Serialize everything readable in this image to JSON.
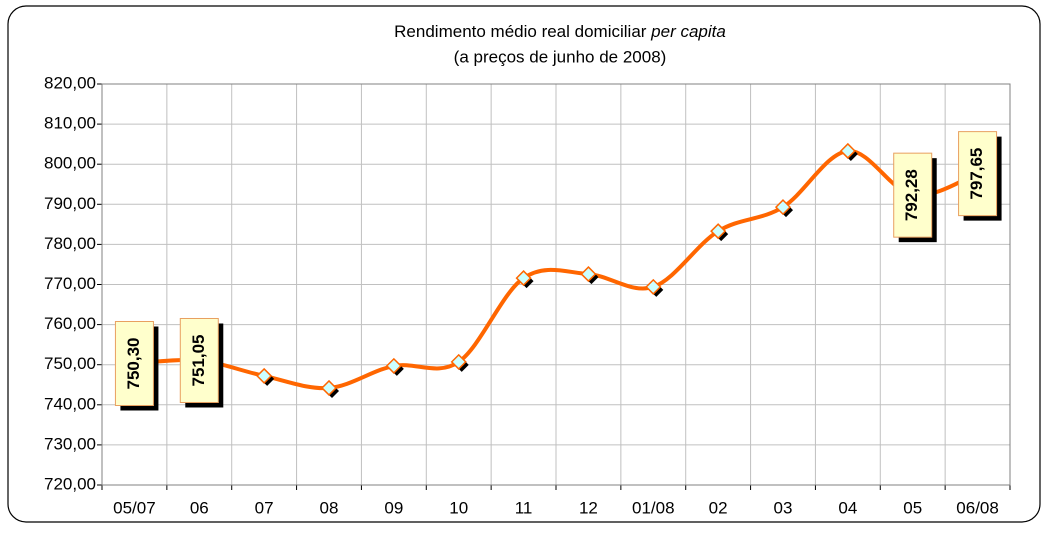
{
  "chart_data": {
    "type": "line",
    "title": {
      "text": "Rendimento médio real domiciliar",
      "emphasis": "per capita"
    },
    "subtitle": "(a preços de junho de 2008)",
    "categories": [
      "05/07",
      "06",
      "07",
      "08",
      "09",
      "10",
      "11",
      "12",
      "01/08",
      "02",
      "03",
      "04",
      "05",
      "06/08"
    ],
    "series": [
      {
        "color": "#ff6600",
        "values": [
          750.3,
          751.05,
          747.2,
          744.2,
          749.7,
          750.7,
          771.6,
          772.6,
          769.4,
          783.3,
          789.3,
          803.3,
          792.28,
          797.65
        ],
        "value_labels": [
          "750,30",
          "751,05",
          null,
          null,
          null,
          null,
          null,
          null,
          null,
          null,
          null,
          null,
          "792,28",
          "797,65"
        ]
      }
    ],
    "ylim": [
      720,
      820
    ],
    "yticks": [
      {
        "value": 720,
        "label": "720,00"
      },
      {
        "value": 730,
        "label": "730,00"
      },
      {
        "value": 740,
        "label": "740,00"
      },
      {
        "value": 750,
        "label": "750,00"
      },
      {
        "value": 760,
        "label": "760,00"
      },
      {
        "value": 770,
        "label": "770,00"
      },
      {
        "value": 780,
        "label": "780,00"
      },
      {
        "value": 790,
        "label": "790,00"
      },
      {
        "value": 800,
        "label": "800,00"
      },
      {
        "value": 810,
        "label": "810,00"
      },
      {
        "value": 820,
        "label": "820,00"
      }
    ],
    "grid": true
  }
}
